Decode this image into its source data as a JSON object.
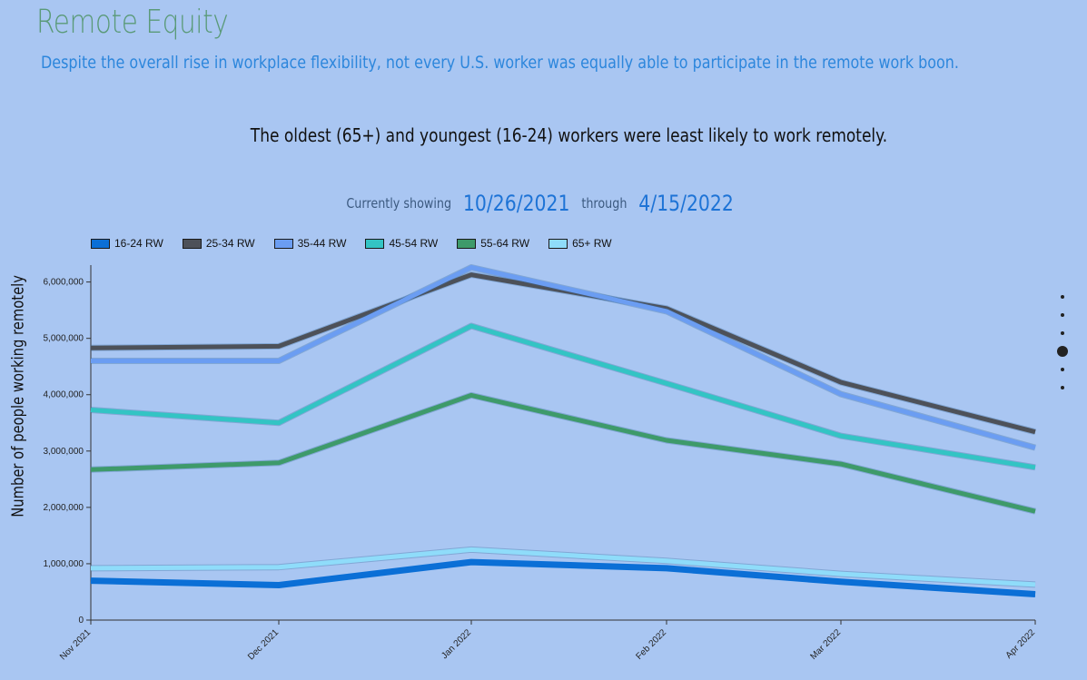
{
  "header": {
    "title": "Remote Equity",
    "subtitle": "Despite the overall rise in workplace flexibility, not every U.S. worker was equally able to participate in the remote work boon."
  },
  "headline": "The oldest (65+) and youngest (16-24) workers were least likely to work remotely.",
  "range": {
    "prefix": "Currently showing",
    "start": "10/26/2021",
    "joiner": "through",
    "end": "4/15/2022"
  },
  "chart_data": {
    "type": "line",
    "title": "",
    "xlabel": "",
    "ylabel": "Number of people working remotely",
    "x": [
      "Nov 2021",
      "Dec 2021",
      "Jan 2022",
      "Feb 2022",
      "Mar 2022",
      "Apr 2022"
    ],
    "ylim": [
      0,
      6300000
    ],
    "yticks": [
      0,
      1000000,
      2000000,
      3000000,
      4000000,
      5000000,
      6000000
    ],
    "ytick_labels": [
      "0",
      "1,000,000",
      "2,000,000",
      "3,000,000",
      "4,000,000",
      "5,000,000",
      "6,000,000"
    ],
    "grid": false,
    "legend_position": "top-left",
    "series": [
      {
        "name": "16-24 RW",
        "color": "#0b6fd6",
        "values": [
          700000,
          620000,
          1030000,
          920000,
          680000,
          460000
        ]
      },
      {
        "name": "25-34 RW",
        "color": "#4d5159",
        "values": [
          4830000,
          4860000,
          6130000,
          5530000,
          4220000,
          3340000
        ]
      },
      {
        "name": "35-44 RW",
        "color": "#6b9df2",
        "values": [
          4600000,
          4600000,
          6260000,
          5480000,
          4010000,
          3060000
        ]
      },
      {
        "name": "45-54 RW",
        "color": "#33c4c4",
        "values": [
          3730000,
          3500000,
          5220000,
          4200000,
          3270000,
          2710000
        ]
      },
      {
        "name": "55-64 RW",
        "color": "#3e9a6a",
        "values": [
          2670000,
          2790000,
          3990000,
          3190000,
          2770000,
          1930000
        ]
      },
      {
        "name": "65+ RW",
        "color": "#8fdcfa",
        "values": [
          920000,
          940000,
          1250000,
          1050000,
          820000,
          630000
        ]
      }
    ]
  }
}
